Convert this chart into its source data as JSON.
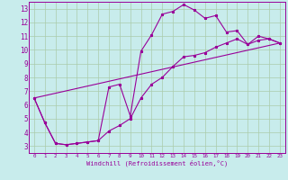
{
  "xlabel": "Windchill (Refroidissement éolien,°C)",
  "bg_color": "#c8ecec",
  "grid_color": "#aaccaa",
  "line_color": "#990099",
  "xlim": [
    -0.5,
    23.5
  ],
  "ylim": [
    2.5,
    13.5
  ],
  "xticks": [
    0,
    1,
    2,
    3,
    4,
    5,
    6,
    7,
    8,
    9,
    10,
    11,
    12,
    13,
    14,
    15,
    16,
    17,
    18,
    19,
    20,
    21,
    22,
    23
  ],
  "yticks": [
    3,
    4,
    5,
    6,
    7,
    8,
    9,
    10,
    11,
    12,
    13
  ],
  "line1_x": [
    0,
    1,
    2,
    3,
    4,
    5,
    6,
    7,
    8,
    9,
    10,
    11,
    12,
    13,
    14,
    15,
    16,
    17,
    18,
    19,
    20,
    21,
    22,
    23
  ],
  "line1_y": [
    6.5,
    4.7,
    3.2,
    3.1,
    3.2,
    3.3,
    3.4,
    7.3,
    7.5,
    5.2,
    9.9,
    11.1,
    12.6,
    12.8,
    13.3,
    12.9,
    12.3,
    12.5,
    11.3,
    11.4,
    10.4,
    11.0,
    10.8,
    10.5
  ],
  "line2_x": [
    0,
    1,
    2,
    3,
    4,
    5,
    6,
    7,
    8,
    9,
    10,
    11,
    12,
    13,
    14,
    15,
    16,
    17,
    18,
    19,
    20,
    21,
    22,
    23
  ],
  "line2_y": [
    6.5,
    4.7,
    3.2,
    3.1,
    3.2,
    3.3,
    3.4,
    4.1,
    4.5,
    5.0,
    6.5,
    7.5,
    8.0,
    8.8,
    9.5,
    9.6,
    9.8,
    10.2,
    10.5,
    10.8,
    10.4,
    10.7,
    10.8,
    10.5
  ],
  "line3_x": [
    0,
    23
  ],
  "line3_y": [
    6.5,
    10.5
  ]
}
